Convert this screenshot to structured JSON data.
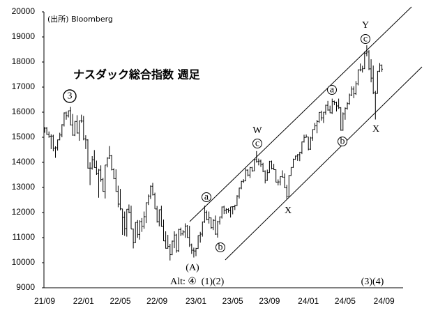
{
  "chart_data": {
    "type": "ohlc",
    "title": "ナスダック総合指数 週足",
    "source": "(出所) Bloomberg",
    "color": "#000000",
    "grid": false,
    "ylim": [
      9000,
      20000
    ],
    "yticks": [
      9000,
      10000,
      11000,
      12000,
      13000,
      14000,
      15000,
      16000,
      17000,
      18000,
      19000,
      20000
    ],
    "categories": [
      "21/09",
      null,
      null,
      null,
      null,
      null,
      null,
      null,
      null,
      null,
      null,
      null,
      null,
      null,
      null,
      null,
      null,
      null,
      "22/01",
      null,
      null,
      null,
      null,
      null,
      null,
      null,
      null,
      null,
      null,
      null,
      null,
      null,
      null,
      null,
      null,
      "22/05",
      null,
      null,
      null,
      null,
      null,
      null,
      null,
      null,
      null,
      null,
      null,
      null,
      null,
      null,
      null,
      null,
      "22/09",
      null,
      null,
      null,
      null,
      null,
      null,
      null,
      null,
      null,
      null,
      null,
      null,
      null,
      null,
      null,
      null,
      null,
      "23/01",
      null,
      null,
      null,
      null,
      null,
      null,
      null,
      null,
      null,
      null,
      null,
      null,
      null,
      null,
      null,
      null,
      "23/05",
      null,
      null,
      null,
      null,
      null,
      null,
      null,
      null,
      null,
      null,
      null,
      null,
      null,
      null,
      null,
      null,
      "23/09",
      null,
      null,
      null,
      null,
      null,
      null,
      null,
      null,
      null,
      null,
      null,
      null,
      null,
      null,
      null,
      null,
      null,
      "24/01",
      null,
      null,
      null,
      null,
      null,
      null,
      null,
      null,
      null,
      null,
      null,
      null,
      null,
      null,
      null,
      null,
      "24/05",
      null,
      null,
      null,
      null,
      null,
      null,
      null,
      null,
      null,
      null,
      null,
      null,
      null,
      null,
      null,
      null,
      null,
      "24/09"
    ],
    "open": [
      15250,
      15363,
      15115,
      15043,
      15048,
      14567,
      14580,
      14897,
      15090,
      15498,
      15971,
      15861,
      16057,
      15492,
      15085,
      15630,
      15169,
      15653,
      15645,
      14936,
      14894,
      13769,
      13771,
      14098,
      13791,
      13548,
      13694,
      13313,
      12844,
      13894,
      14169,
      14262,
      13711,
      13351,
      12839,
      12335,
      12145,
      11805,
      11355,
      12131,
      12013,
      11340,
      10798,
      11608,
      11128,
      11636,
      11452,
      11834,
      12391,
      12657,
      13047,
      12706,
      12142,
      11631,
      12112,
      11448,
      10868,
      10576,
      10652,
      10321,
      10860,
      11102,
      10475,
      11324,
      11146,
      11226,
      11461,
      11005,
      10705,
      10498,
      10466,
      10569,
      11079,
      11140,
      11622,
      12007,
      11718,
      11787,
      11395,
      11689,
      11139,
      11631,
      11824,
      12222,
      12088,
      12124,
      12073,
      12227,
      12235,
      12284,
      12658,
      12975,
      13241,
      13259,
      13690,
      13493,
      13788,
      13661,
      14114,
      14033,
      14051,
      13909,
      13645,
      13291,
      13591,
      14031,
      13762,
      13708,
      13212,
      13219,
      13431,
      13407,
      12984,
      12643,
      13478,
      13798,
      14125,
      14251,
      14305,
      14404,
      14814,
      14993,
      15011,
      14524,
      14973,
      15311,
      15455,
      15629,
      15991,
      15776,
      15997,
      16275,
      16085,
      15973,
      16429,
      16379,
      16249,
      16175,
      15282,
      15928,
      16156,
      16341,
      16686,
      16921,
      16735,
      17133,
      17689,
      17689,
      17733,
      18353,
      18398,
      17727,
      17358,
      16776,
      16745,
      17631,
      17877,
      null
    ],
    "high": [
      15403,
      15404,
      15230,
      15120,
      15100,
      14640,
      14910,
      15180,
      15520,
      15990,
      16020,
      16060,
      16212,
      15930,
      15650,
      15880,
      15660,
      15900,
      15850,
      15080,
      14920,
      14000,
      14250,
      14490,
      14070,
      13740,
      13880,
      13380,
      13890,
      14200,
      14650,
      14290,
      13760,
      13720,
      13070,
      12940,
      12150,
      12040,
      12140,
      12320,
      12270,
      11360,
      11610,
      11700,
      11690,
      11780,
      12040,
      12400,
      12720,
      13080,
      13180,
      12790,
      12260,
      12120,
      12270,
      11720,
      11250,
      11110,
      10750,
      10880,
      11250,
      11150,
      11350,
      11400,
      11300,
      11570,
      11500,
      11470,
      10760,
      10600,
      10590,
      11090,
      11230,
      11640,
      12270,
      12080,
      12040,
      11800,
      11740,
      11880,
      11670,
      11840,
      12240,
      12270,
      12170,
      12170,
      12230,
      12250,
      12310,
      12690,
      12990,
      13260,
      13330,
      13760,
      13720,
      13820,
      13820,
      14130,
      14450,
      14150,
      14110,
      13980,
      13680,
      13710,
      14060,
      14070,
      13940,
      13720,
      13320,
      13440,
      13680,
      13560,
      13100,
      13490,
      13800,
      14150,
      14270,
      14330,
      14420,
      14830,
      15100,
      15110,
      15020,
      15020,
      15320,
      15570,
      15690,
      16000,
      16060,
      16010,
      16300,
      16450,
      16260,
      16540,
      16460,
      16420,
      16540,
      16200,
      15990,
      16190,
      16400,
      16740,
      17030,
      17030,
      17240,
      17700,
      17940,
      17850,
      18420,
      18671,
      18470,
      18110,
      17860,
      16850,
      17640,
      17960,
      17900,
      null
    ],
    "low": [
      15180,
      15100,
      14980,
      14530,
      14440,
      14180,
      14470,
      14880,
      15000,
      15430,
      15700,
      15790,
      15470,
      15060,
      15050,
      15150,
      14860,
      15580,
      14880,
      14530,
      13750,
      13090,
      13710,
      13790,
      13500,
      12590,
      13230,
      12830,
      12560,
      13800,
      14140,
      13680,
      13330,
      12830,
      12210,
      12090,
      11110,
      11070,
      11040,
      11970,
      11340,
      10570,
      10780,
      10990,
      10920,
      11230,
      11350,
      11580,
      12300,
      12540,
      12680,
      12140,
      11600,
      11450,
      11430,
      10860,
      10560,
      10560,
      10088,
      10300,
      10580,
      10400,
      10420,
      11060,
      11080,
      10990,
      10990,
      10630,
      10350,
      10207,
      10260,
      10550,
      10800,
      11040,
      11590,
      11690,
      11560,
      11350,
      11300,
      11110,
      11000,
      11520,
      11760,
      11940,
      11950,
      11990,
      11800,
      11930,
      12100,
      12260,
      12560,
      12930,
      13180,
      13250,
      13440,
      13380,
      13630,
      13650,
      13990,
      13880,
      13820,
      13610,
      13160,
      13260,
      13580,
      13720,
      13700,
      13200,
      13080,
      13080,
      13400,
      12980,
      12544,
      12640,
      13460,
      13780,
      14100,
      14060,
      14050,
      14330,
      14790,
      14990,
      14480,
      14500,
      14860,
      15300,
      15160,
      15570,
      15660,
      15570,
      15900,
      16060,
      15960,
      15930,
      16280,
      16030,
      16130,
      15260,
      15260,
      15700,
      16100,
      16300,
      16640,
      16560,
      16690,
      17070,
      17630,
      17580,
      17720,
      18230,
      17680,
      17190,
      16720,
      15708,
      16740,
      17600,
      17610,
      null
    ],
    "close": [
      15363,
      15115,
      15043,
      15048,
      14567,
      14580,
      14897,
      15090,
      15498,
      15971,
      15861,
      16057,
      15492,
      15085,
      15630,
      15169,
      15653,
      15645,
      14936,
      14894,
      13769,
      13771,
      14098,
      13791,
      13548,
      13694,
      13313,
      12844,
      13894,
      14169,
      14262,
      13711,
      13351,
      12839,
      12335,
      12145,
      11805,
      11355,
      12131,
      12013,
      11340,
      10798,
      11608,
      11128,
      11636,
      11452,
      11834,
      12391,
      12657,
      13047,
      12706,
      12142,
      11631,
      12112,
      11448,
      10868,
      10576,
      10652,
      10321,
      10860,
      11102,
      10475,
      11324,
      11146,
      11226,
      11461,
      11005,
      10705,
      10498,
      10466,
      10569,
      11079,
      11140,
      11622,
      12007,
      11718,
      11787,
      11395,
      11689,
      11139,
      11631,
      11824,
      12222,
      12088,
      12124,
      12073,
      12227,
      12235,
      12284,
      12658,
      12975,
      13241,
      13259,
      13690,
      13493,
      13788,
      13661,
      14114,
      14033,
      14051,
      13909,
      13645,
      13291,
      13591,
      14031,
      13762,
      13708,
      13212,
      13219,
      13431,
      13407,
      12984,
      12643,
      13478,
      13798,
      14125,
      14251,
      14305,
      14404,
      14814,
      14993,
      15011,
      14524,
      14973,
      15311,
      15455,
      15629,
      15991,
      15776,
      15997,
      16275,
      16085,
      15973,
      16429,
      16379,
      16249,
      16175,
      15282,
      15928,
      16156,
      16341,
      16686,
      16921,
      16735,
      17133,
      17689,
      17689,
      17733,
      18353,
      18398,
      17727,
      17358,
      16776,
      16745,
      17631,
      17877,
      17714,
      null
    ],
    "annotations": [
      {
        "text": "3",
        "circled": true
      },
      {
        "text": "W",
        "circled": false
      },
      {
        "text": "c",
        "circled": true
      },
      {
        "text": "a",
        "circled": true
      },
      {
        "text": "b",
        "circled": true
      },
      {
        "text": "(A)",
        "circled": false
      },
      {
        "text": "Alt: ④",
        "circled": false
      },
      {
        "text": "(1)(2)",
        "circled": false
      },
      {
        "text": "X",
        "circled": false
      },
      {
        "text": "a",
        "circled": true
      },
      {
        "text": "b",
        "circled": true
      },
      {
        "text": "Y",
        "circled": false
      },
      {
        "text": "c",
        "circled": true
      },
      {
        "text": "X",
        "circled": false
      },
      {
        "text": "(3)(4)",
        "circled": false
      }
    ]
  }
}
